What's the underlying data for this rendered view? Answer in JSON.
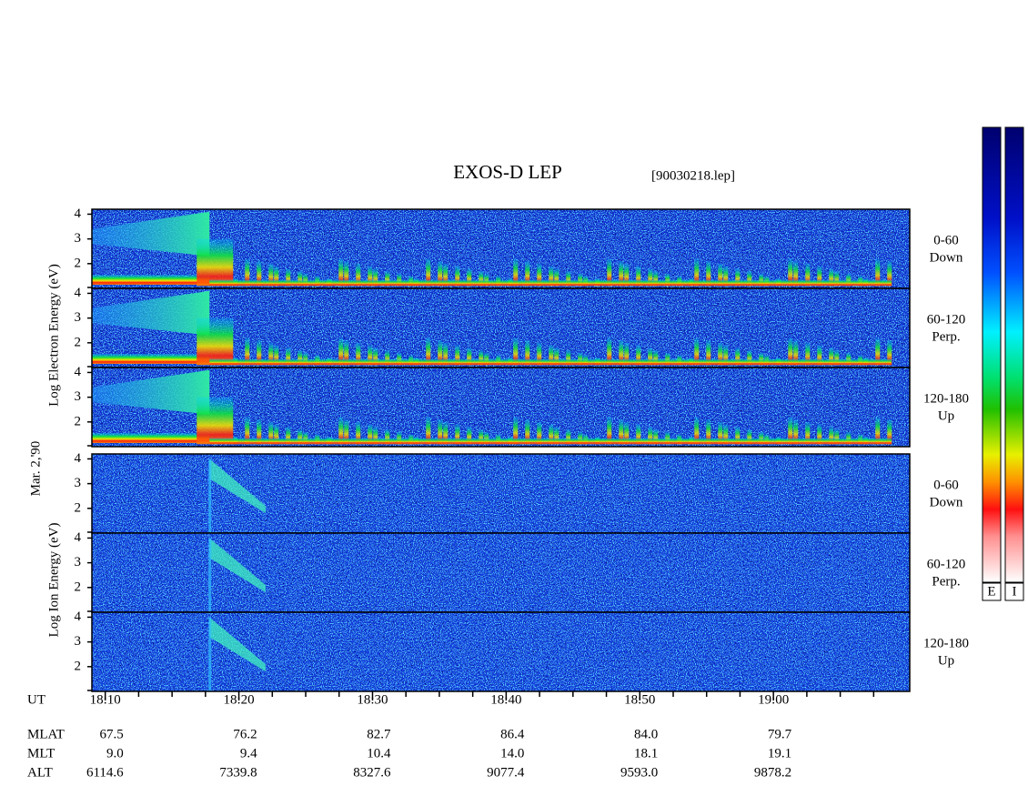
{
  "chart_data": {
    "type": "spectrogram",
    "title": "EXOS-D LEP",
    "file_label": "[90030218.lep]",
    "date_label": "Mar. 2,'90",
    "ylim": [
      1,
      4.2
    ],
    "yticks": [
      2,
      3,
      4
    ],
    "xlim": [
      9,
      70.2
    ],
    "xticks": [
      {
        "value": 10,
        "label": "18:10"
      },
      {
        "value": 20,
        "label": "18:20"
      },
      {
        "value": 30,
        "label": "18:30"
      },
      {
        "value": 40,
        "label": "18:40"
      },
      {
        "value": 50,
        "label": "18:50"
      },
      {
        "value": 60,
        "label": "19:00"
      }
    ],
    "x_row_label": "UT",
    "groups": [
      {
        "ylabel": "Log Electron Energy (eV)",
        "species": "electron",
        "panels": [
          {
            "label": [
              "0-60",
              "Down"
            ]
          },
          {
            "label": [
              "60-120",
              "Perp."
            ]
          },
          {
            "label": [
              "120-180",
              "Up"
            ]
          }
        ]
      },
      {
        "ylabel": "Log Ion Energy (eV)",
        "species": "ion",
        "panels": [
          {
            "label": [
              "0-60",
              "Down"
            ]
          },
          {
            "label": [
              "60-120",
              "Perp."
            ]
          },
          {
            "label": [
              "120-180",
              "Up"
            ]
          }
        ]
      }
    ],
    "rows": [
      {
        "name": "MLAT",
        "values": [
          "67.5",
          "76.2",
          "82.7",
          "86.4",
          "84.0",
          "79.7"
        ]
      },
      {
        "name": "MLT",
        "values": [
          "9.0",
          "9.4",
          "10.4",
          "14.0",
          "18.1",
          "19.1"
        ]
      },
      {
        "name": "ALT",
        "values": [
          "6114.6",
          "7339.8",
          "8327.6",
          "9077.4",
          "9593.0",
          "9878.2"
        ]
      }
    ],
    "colorbars": [
      "E",
      "I"
    ]
  }
}
